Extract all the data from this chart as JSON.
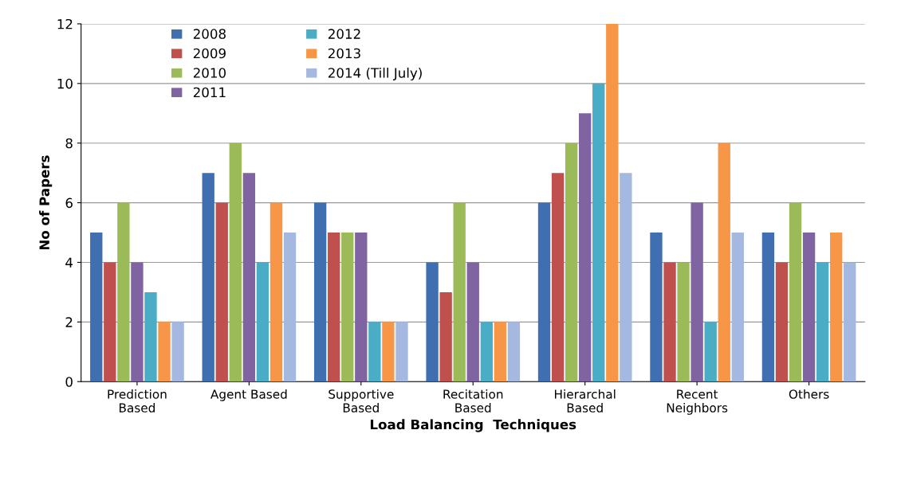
{
  "chart_data": {
    "type": "bar",
    "xlabel": "Load Balancing  Techniques",
    "ylabel": "No of Papers",
    "categories": [
      "Prediction\nBased",
      "Agent Based",
      "Supportive\nBased",
      "Recitation\nBased",
      "Hierarchal\nBased",
      "Recent\nNeighbors",
      "Others"
    ],
    "series": [
      {
        "name": "2008",
        "color": "#3f6fb0",
        "values": [
          5,
          7,
          6,
          4,
          6,
          5,
          5
        ]
      },
      {
        "name": "2009",
        "color": "#c0504d",
        "values": [
          4,
          6,
          5,
          3,
          7,
          4,
          4
        ]
      },
      {
        "name": "2010",
        "color": "#9bbb59",
        "values": [
          6,
          8,
          5,
          6,
          8,
          4,
          6
        ]
      },
      {
        "name": "2011",
        "color": "#8064a2",
        "values": [
          4,
          7,
          5,
          4,
          9,
          6,
          5
        ]
      },
      {
        "name": "2012",
        "color": "#4bacc6",
        "values": [
          3,
          4,
          2,
          2,
          10,
          2,
          4
        ]
      },
      {
        "name": "2013",
        "color": "#f79646",
        "values": [
          2,
          6,
          2,
          2,
          12,
          8,
          5
        ]
      },
      {
        "name": "2014 (Till July)",
        "color": "#a5b8e0",
        "values": [
          2,
          5,
          2,
          2,
          7,
          5,
          4
        ]
      }
    ],
    "ylim": [
      0,
      12
    ],
    "yticks": [
      0,
      2,
      4,
      6,
      8,
      10,
      12
    ],
    "grid": "y",
    "legend": "top left"
  }
}
